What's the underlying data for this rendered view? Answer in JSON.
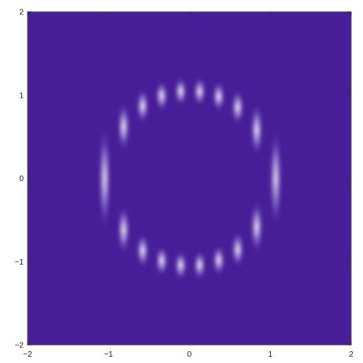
{
  "chart_data": {
    "type": "heatmap",
    "title": "",
    "xlabel": "",
    "ylabel": "",
    "xlim": [
      -2,
      2
    ],
    "ylim": [
      -2,
      2
    ],
    "x_ticks": [
      -2,
      -1,
      0,
      1,
      2
    ],
    "y_ticks": [
      -2,
      -1,
      0,
      1,
      2
    ],
    "x_tick_labels": [
      "-2",
      "-1",
      "0",
      "1",
      "2"
    ],
    "y_tick_labels": [
      "-2",
      "-1",
      "0",
      "1",
      "2"
    ],
    "grid": false,
    "legend": "none",
    "pattern": "fringe ring: bright vertical interference fringes on an annulus, intensity minimum at the center",
    "ring_radius": 1.05,
    "ring_width": 0.32,
    "fringe_spacing": 0.255,
    "colormap": {
      "low": "#471e97",
      "mid": "#9a86d8",
      "high": "#fbf6ec"
    }
  }
}
